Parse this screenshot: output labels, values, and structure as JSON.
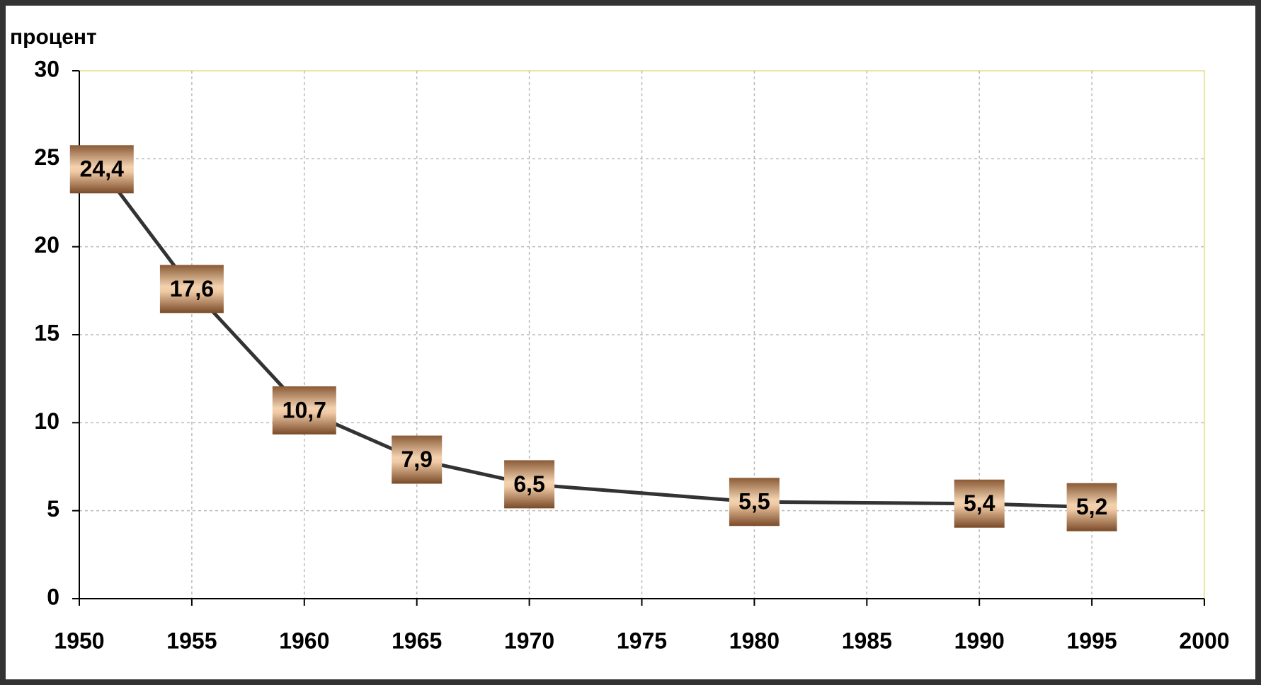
{
  "chart_data": {
    "type": "line",
    "y_label": "процент",
    "x": [
      1951,
      1955,
      1960,
      1965,
      1970,
      1980,
      1990,
      1995
    ],
    "series": [
      {
        "color": "#333333",
        "values": [
          24.4,
          17.6,
          10.7,
          7.9,
          6.5,
          5.5,
          5.4,
          5.2
        ],
        "value_labels": [
          "24,4",
          "17,6",
          "10,7",
          "7,9",
          "6,5",
          "5,5",
          "5,4",
          "5,2"
        ]
      }
    ],
    "xlim": [
      1950,
      2000
    ],
    "xticks": [
      1950,
      1955,
      1960,
      1965,
      1970,
      1975,
      1980,
      1985,
      1990,
      1995,
      2000
    ],
    "ylim": [
      0,
      30
    ],
    "yticks": [
      0,
      5,
      10,
      15,
      20,
      25,
      30
    ],
    "grid": true
  }
}
